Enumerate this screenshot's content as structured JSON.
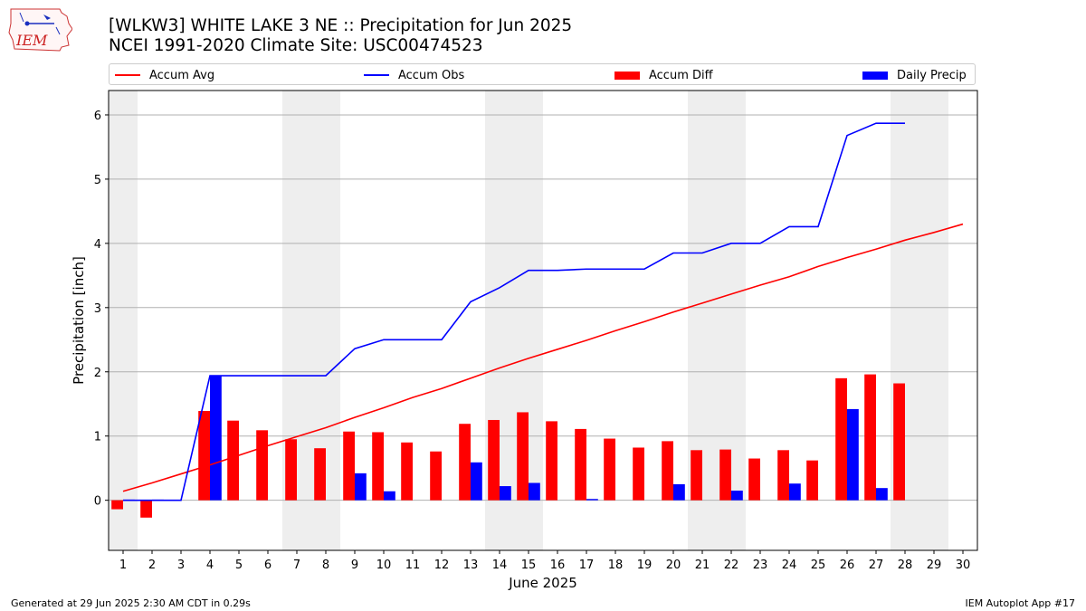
{
  "header": {
    "title": "[WLKW3] WHITE LAKE 3 NE :: Precipitation for Jun 2025",
    "subtitle": "NCEI 1991-2020 Climate Site: USC00474523",
    "logo_text": "IEM"
  },
  "footer": {
    "generated": "Generated at 29 Jun 2025 2:30 AM CDT in 0.29s",
    "app": "IEM Autoplot App #17"
  },
  "colors": {
    "avg": "#ff0000",
    "obs": "#0000ff",
    "diff": "#ff0000",
    "daily": "#0000ff",
    "weekend_shade": "#eeeeee",
    "grid": "#b0b0b0"
  },
  "chart_data": {
    "type": "bar",
    "xlabel": "June 2025",
    "ylabel": "Precipitation [inch]",
    "ylim": [
      -0.78,
      6.38
    ],
    "yticks": [
      0,
      1,
      2,
      3,
      4,
      5,
      6
    ],
    "xlim": [
      0.5,
      30.5
    ],
    "grid": "horizontal",
    "legend_position": "top",
    "days": [
      1,
      2,
      3,
      4,
      5,
      6,
      7,
      8,
      9,
      10,
      11,
      12,
      13,
      14,
      15,
      16,
      17,
      18,
      19,
      20,
      21,
      22,
      23,
      24,
      25,
      26,
      27,
      28,
      29,
      30
    ],
    "shaded_days": [
      1,
      7,
      8,
      14,
      15,
      21,
      22,
      28,
      29
    ],
    "series": [
      {
        "name": "Accum Avg",
        "kind": "line",
        "x": [
          1,
          2,
          3,
          4,
          5,
          6,
          7,
          8,
          9,
          10,
          11,
          12,
          13,
          14,
          15,
          16,
          17,
          18,
          19,
          20,
          21,
          22,
          23,
          24,
          25,
          26,
          27,
          28,
          29,
          30
        ],
        "values": [
          0.14,
          0.27,
          0.41,
          0.55,
          0.7,
          0.85,
          0.99,
          1.13,
          1.29,
          1.44,
          1.6,
          1.74,
          1.9,
          2.06,
          2.21,
          2.35,
          2.49,
          2.64,
          2.78,
          2.93,
          3.07,
          3.21,
          3.35,
          3.48,
          3.64,
          3.78,
          3.91,
          4.05,
          4.17,
          4.3
        ]
      },
      {
        "name": "Accum Obs",
        "kind": "line",
        "x": [
          1,
          2,
          3,
          4,
          5,
          6,
          7,
          8,
          9,
          10,
          11,
          12,
          13,
          14,
          15,
          16,
          17,
          18,
          19,
          20,
          21,
          22,
          23,
          24,
          25,
          26,
          27,
          28
        ],
        "values": [
          0.0,
          0.0,
          0.0,
          1.94,
          1.94,
          1.94,
          1.94,
          1.94,
          2.36,
          2.5,
          2.5,
          2.5,
          3.09,
          3.31,
          3.58,
          3.58,
          3.6,
          3.6,
          3.6,
          3.85,
          3.85,
          4.0,
          4.0,
          4.26,
          4.26,
          5.68,
          5.87,
          5.87
        ]
      },
      {
        "name": "Accum Diff",
        "kind": "bar",
        "x": [
          1,
          2,
          4,
          5,
          6,
          7,
          8,
          9,
          10,
          11,
          12,
          13,
          14,
          15,
          16,
          17,
          18,
          19,
          20,
          21,
          22,
          23,
          24,
          25,
          26,
          27,
          28
        ],
        "values": [
          -0.14,
          -0.27,
          1.39,
          1.24,
          1.09,
          0.95,
          0.81,
          1.07,
          1.06,
          0.9,
          0.76,
          1.19,
          1.25,
          1.37,
          1.23,
          1.11,
          0.96,
          0.82,
          0.92,
          0.78,
          0.79,
          0.65,
          0.78,
          0.62,
          1.9,
          1.96,
          1.82
        ]
      },
      {
        "name": "Daily Precip",
        "kind": "bar",
        "x": [
          1,
          2,
          4,
          9,
          10,
          13,
          14,
          15,
          17,
          20,
          22,
          24,
          26,
          27
        ],
        "values": [
          0.0,
          0.0,
          1.94,
          0.42,
          0.14,
          0.59,
          0.22,
          0.27,
          0.02,
          0.25,
          0.15,
          0.26,
          1.42,
          0.19
        ]
      }
    ]
  }
}
